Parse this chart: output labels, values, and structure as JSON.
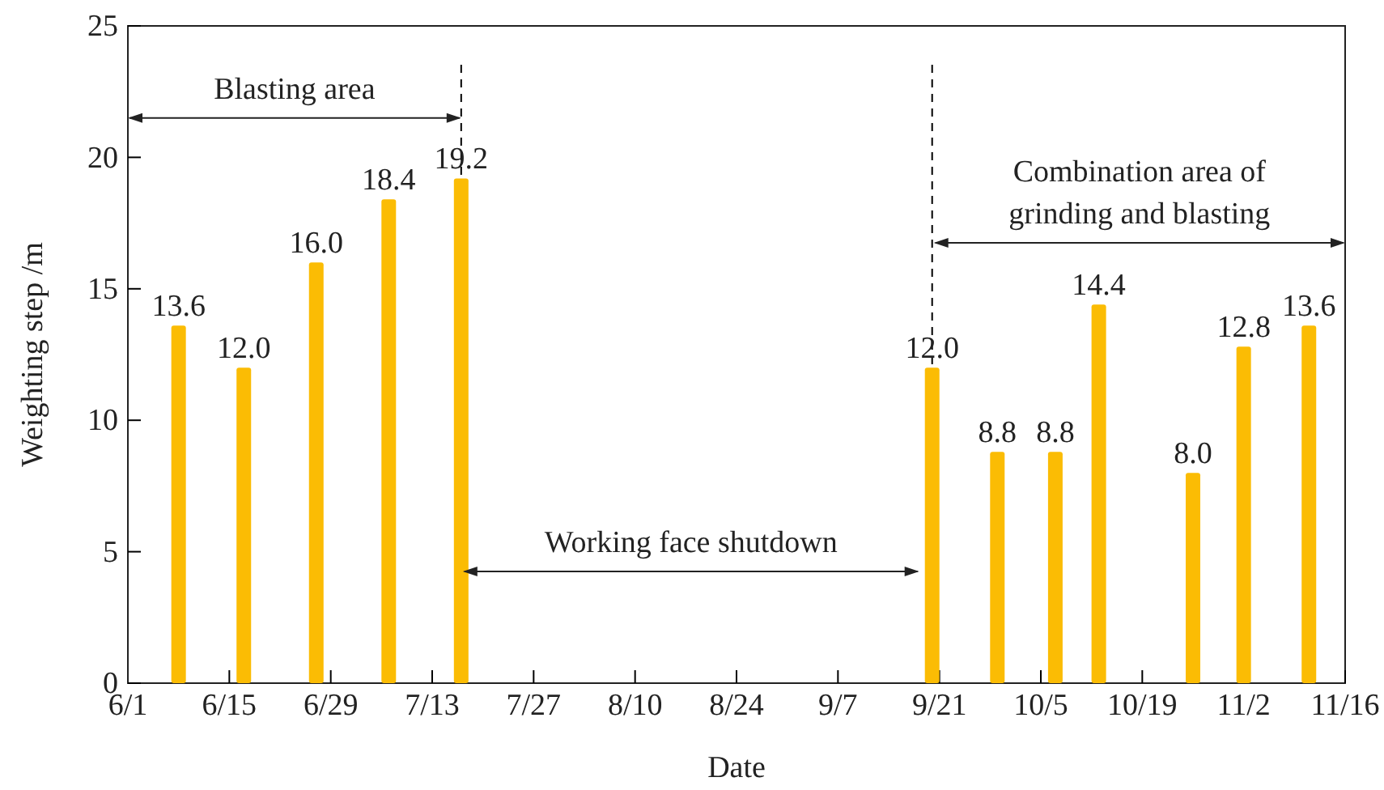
{
  "chart_data": {
    "type": "bar",
    "xlabel": "Date",
    "ylabel": "Weighting step /m",
    "x": [
      "--06-08",
      "--06-17",
      "--06-27",
      "--07-07",
      "--07-17",
      "--09-20",
      "--09-29",
      "--10-07",
      "--10-13",
      "--10-26",
      "--11-02",
      "--11-11"
    ],
    "values": [
      13.6,
      12.0,
      16.0,
      18.4,
      19.2,
      12.0,
      8.8,
      8.8,
      14.4,
      8.0,
      12.8,
      13.6
    ],
    "value_labels": [
      "13.6",
      "12.0",
      "16.0",
      "18.4",
      "19.2",
      "12.0",
      "8.8",
      "8.8",
      "14.4",
      "8.0",
      "12.8",
      "13.6"
    ],
    "color": "#fbbc04",
    "xlim": [
      "--06-01",
      "--11-16"
    ],
    "xticks": [
      {
        "value": "--06-01",
        "label": "6/1"
      },
      {
        "value": "--06-15",
        "label": "6/15"
      },
      {
        "value": "--06-29",
        "label": "6/29"
      },
      {
        "value": "--07-13",
        "label": "7/13"
      },
      {
        "value": "--07-27",
        "label": "7/27"
      },
      {
        "value": "--08-10",
        "label": "8/10"
      },
      {
        "value": "--08-24",
        "label": "8/24"
      },
      {
        "value": "--09-07",
        "label": "9/7"
      },
      {
        "value": "--09-21",
        "label": "9/21"
      },
      {
        "value": "--10-05",
        "label": "10/5"
      },
      {
        "value": "--10-19",
        "label": "10/19"
      },
      {
        "value": "--11-02",
        "label": "11/2"
      },
      {
        "value": "--11-16",
        "label": "11/16"
      }
    ],
    "ylim": [
      0,
      25
    ],
    "yticks": [
      0,
      5,
      10,
      15,
      20,
      25
    ],
    "ref_lines": [
      {
        "axis": "x",
        "value": "--07-17",
        "line_style": "dashed",
        "color": "#000000"
      },
      {
        "axis": "x",
        "value": "--09-20",
        "line_style": "dashed",
        "color": "#000000"
      }
    ],
    "annotations": [
      "Blasting area",
      "Working face shutdown",
      "Combination area of grinding and blasting"
    ]
  }
}
